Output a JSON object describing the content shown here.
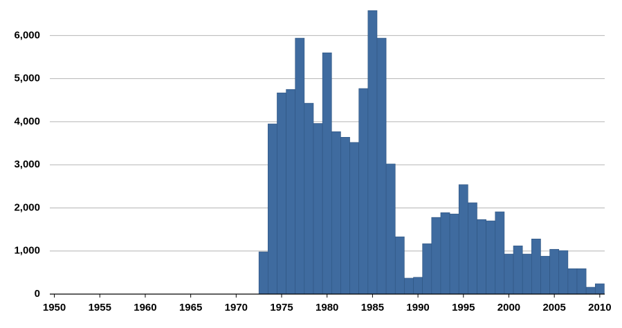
{
  "chart_data": {
    "type": "bar",
    "x": [
      1973,
      1974,
      1975,
      1976,
      1977,
      1978,
      1979,
      1980,
      1981,
      1982,
      1983,
      1984,
      1985,
      1986,
      1987,
      1988,
      1989,
      1990,
      1991,
      1992,
      1993,
      1994,
      1995,
      1996,
      1997,
      1998,
      1999,
      2000,
      2001,
      2002,
      2003,
      2004,
      2005,
      2006,
      2007,
      2008,
      2009,
      2010
    ],
    "values": [
      980,
      3950,
      4670,
      4750,
      5940,
      4430,
      3960,
      5600,
      3770,
      3640,
      3520,
      4770,
      6580,
      5940,
      3020,
      1330,
      370,
      390,
      1170,
      1780,
      1890,
      1860,
      2540,
      2120,
      1730,
      1700,
      1910,
      930,
      1120,
      930,
      1280,
      880,
      1040,
      1010,
      590,
      590,
      160,
      240
    ],
    "color": "#3f6b9f",
    "xlim": [
      1949.5,
      2011
    ],
    "xticks": [
      1950,
      1955,
      1960,
      1965,
      1970,
      1975,
      1980,
      1985,
      1990,
      1995,
      2000,
      2005,
      2010
    ],
    "ylim": [
      0,
      6600
    ],
    "yticks": [
      0,
      {
        "value": 1000,
        "label": "1,000"
      },
      {
        "value": 2000,
        "label": "2,000"
      },
      {
        "value": 3000,
        "label": "3,000"
      },
      {
        "value": 4000,
        "label": "4,000"
      },
      {
        "value": 5000,
        "label": "5,000"
      },
      {
        "value": 6000,
        "label": "6,000"
      }
    ],
    "grid": true
  }
}
